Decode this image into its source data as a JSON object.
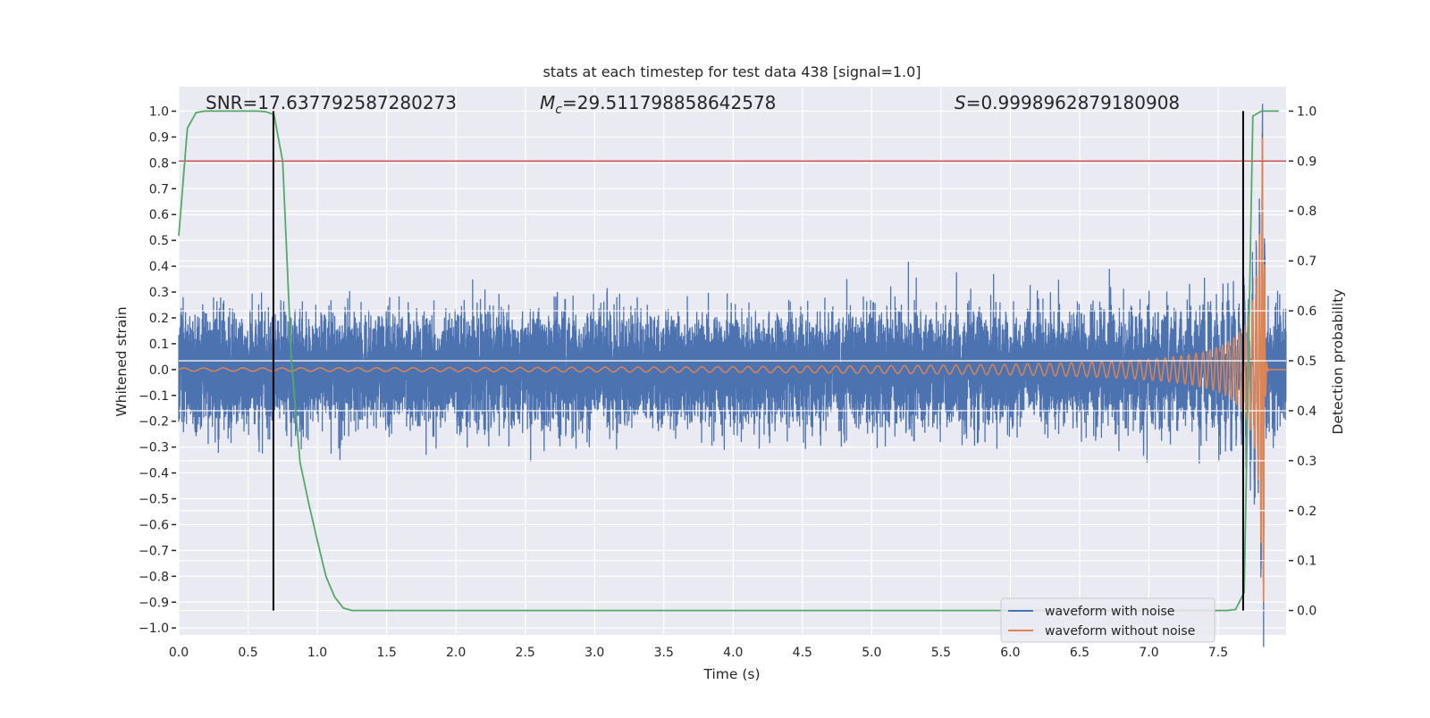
{
  "chart_data": {
    "type": "line",
    "title": "stats at each timestep for test data 438 [signal=1.0]",
    "xlabel": "Time (s)",
    "ylabel": "Whitened strain",
    "ylabel_right": "Detection probability",
    "xlim": [
      0,
      7.99
    ],
    "ylim": [
      -1.027,
      1.095
    ],
    "ylim_right": [
      -0.049,
      1.049
    ],
    "grid": true,
    "legend_placement": "lower-right",
    "xticks": [
      "0.0",
      "0.5",
      "1.0",
      "1.5",
      "2.0",
      "2.5",
      "3.0",
      "3.5",
      "4.0",
      "4.5",
      "5.0",
      "5.5",
      "6.0",
      "6.5",
      "7.0",
      "7.5"
    ],
    "yticks": [
      "1.0",
      "0.9",
      "0.8",
      "0.7",
      "0.6",
      "0.5",
      "0.4",
      "0.3",
      "0.2",
      "0.1",
      "0.0",
      "−0.1",
      "−0.2",
      "−0.3",
      "−0.4",
      "−0.5",
      "−0.6",
      "−0.7",
      "−0.8",
      "−0.9",
      "−1.0"
    ],
    "yticks_right": [
      "1.0",
      "0.9",
      "0.8",
      "0.7",
      "0.6",
      "0.5",
      "0.4",
      "0.3",
      "0.2",
      "0.1",
      "0.0"
    ],
    "annotations": {
      "snr": "SNR=17.637792587280273",
      "mc_symbol": "M",
      "mc_sub": "c",
      "mc_value": "=29.511798858642578",
      "s_symbol": "S",
      "s_value": "=0.9998962879180908"
    },
    "series": [
      {
        "name": "waveform with noise",
        "color": "#4c72b0",
        "axis": "left",
        "noise_std": 0.1,
        "seed": 438
      },
      {
        "name": "waveform without noise",
        "color": "#dd8452",
        "axis": "left",
        "merger_time": 7.83,
        "peak_amplitude": 0.9
      },
      {
        "name": "detection probability",
        "color": "#55a868",
        "axis": "right",
        "x": [
          0,
          0.0625,
          0.125,
          0.1875,
          0.5625,
          0.625,
          0.6875,
          0.75,
          0.8125,
          0.875,
          0.9375,
          1.0,
          1.0625,
          1.125,
          1.1875,
          1.25,
          7.5625,
          7.625,
          7.6875,
          7.75,
          7.8125,
          7.9375
        ],
        "y": [
          0.75,
          0.966,
          0.997,
          1.0,
          1.0,
          0.999,
          0.993,
          0.899,
          0.503,
          0.297,
          0.215,
          0.14,
          0.068,
          0.027,
          0.005,
          0.0,
          0.0,
          0.002,
          0.036,
          0.99,
          1.0,
          1.0
        ]
      }
    ],
    "threshold": {
      "value": 0.9,
      "axis": "right",
      "color": "#c44e52"
    },
    "vlines": [
      {
        "x": 0.683,
        "ymin": 0,
        "ymax": 1
      },
      {
        "x": 7.68,
        "ymin": 0,
        "ymax": 1
      }
    ],
    "legend": [
      "waveform with noise",
      "waveform without noise"
    ]
  }
}
